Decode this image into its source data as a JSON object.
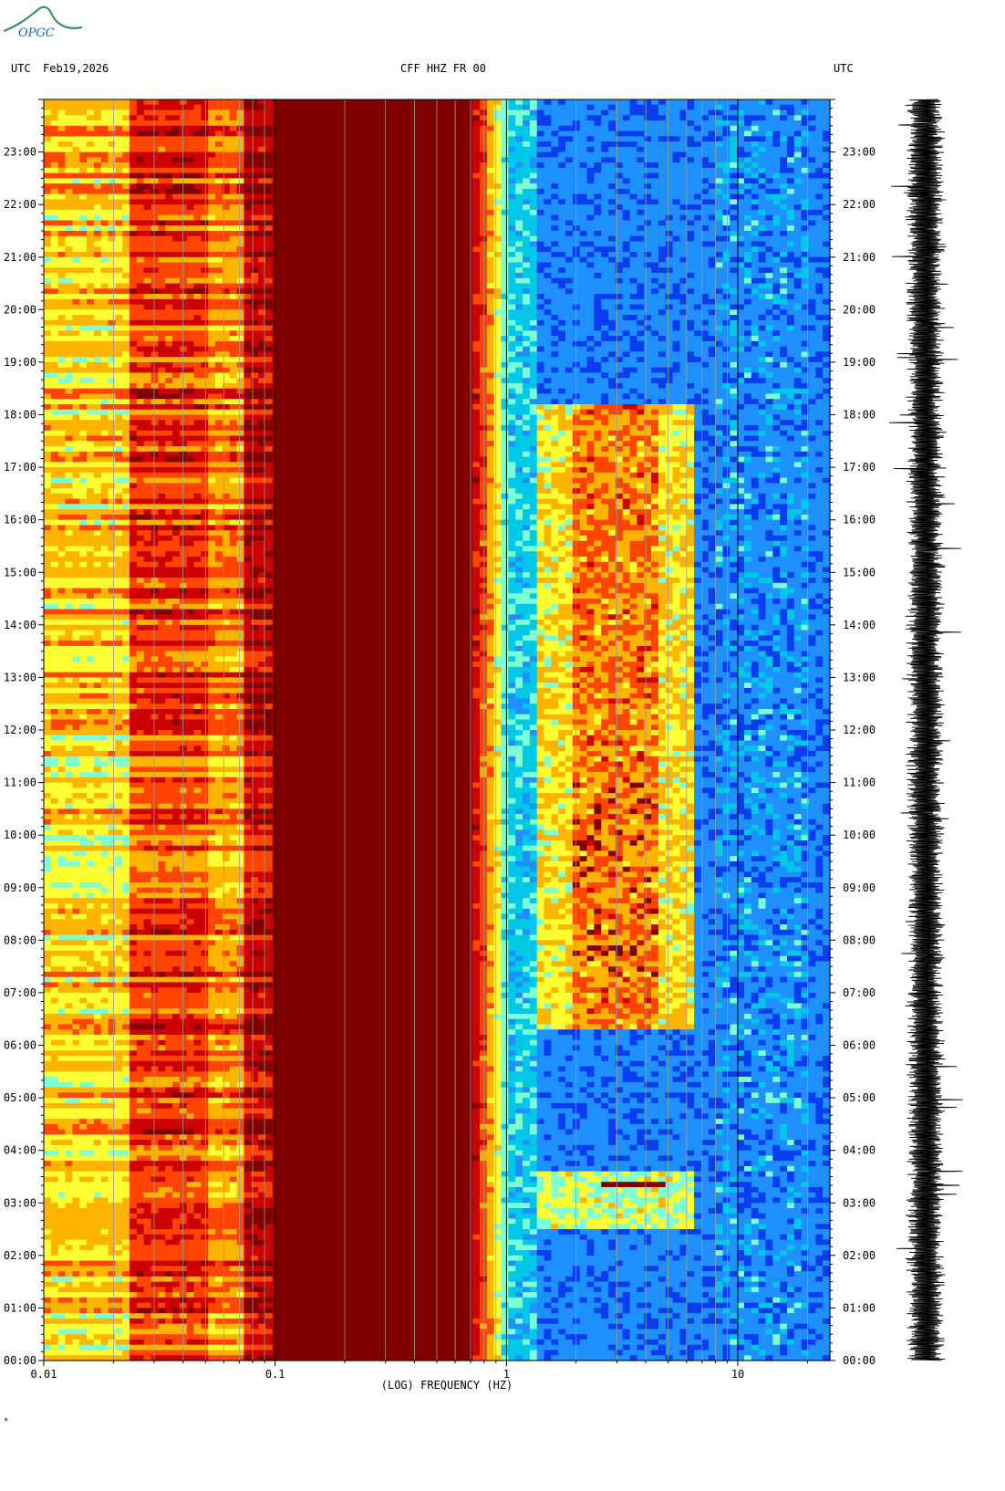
{
  "logo": {
    "text": "OPGC",
    "color": "#2e8b57"
  },
  "header": {
    "left_tz": "UTC",
    "date": "Feb19,2026",
    "station": "CFF HHZ FR 00",
    "right_tz": "UTC"
  },
  "footer_mark": "*",
  "chart_data": {
    "type": "heatmap",
    "title": "CFF HHZ FR 00",
    "xlabel": "(LOG) FREQUENCY (HZ)",
    "ylabel": "",
    "x_scale": "log",
    "xlim": [
      0.01,
      25
    ],
    "ylim_hours": [
      0,
      24
    ],
    "x_ticks": [
      {
        "value": 0.01,
        "label": "0.01"
      },
      {
        "value": 0.1,
        "label": "0.1"
      },
      {
        "value": 1,
        "label": "1"
      },
      {
        "value": 10,
        "label": "10"
      }
    ],
    "y_ticks": [
      "00:00",
      "01:00",
      "02:00",
      "03:00",
      "04:00",
      "05:00",
      "06:00",
      "07:00",
      "08:00",
      "09:00",
      "10:00",
      "11:00",
      "12:00",
      "13:00",
      "14:00",
      "15:00",
      "16:00",
      "17:00",
      "18:00",
      "19:00",
      "20:00",
      "21:00",
      "22:00",
      "23:00"
    ],
    "colormap": [
      "#0000cc",
      "#0a3cf0",
      "#1e90ff",
      "#00c8e6",
      "#7fffd4",
      "#ffff33",
      "#ffb400",
      "#ff4500",
      "#cc0000",
      "#800000"
    ],
    "grid": true,
    "features": [
      {
        "name": "microseism-band",
        "freq_hz": [
          0.1,
          0.75
        ],
        "intensity": "max"
      },
      {
        "name": "long-period-band",
        "freq_hz": [
          0.01,
          0.1
        ],
        "intensity": "high"
      },
      {
        "name": "daytime-cultural-noise",
        "freq_hz": [
          1.5,
          6
        ],
        "time_h": [
          6.5,
          18
        ],
        "intensity": "moderate-high"
      },
      {
        "name": "night-event",
        "freq_hz": [
          1.5,
          7
        ],
        "time_h": [
          2.5,
          3.5
        ],
        "intensity": "moderate-high"
      }
    ]
  },
  "seismogram": {
    "label": "",
    "color": "#000000"
  }
}
